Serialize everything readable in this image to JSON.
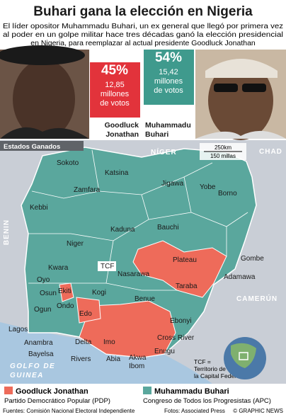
{
  "header": {
    "title": "Buhari gana la elección en Nigeria",
    "subtitle": [
      "El líder opositor Muhammadu Buhari, un ex general que llegó por primera vez",
      "al poder en un golpe militar hace tres décadas ganó la elección presidencial",
      "en Nigeria, para reemplazar al actual presidente Goodluck Jonathan"
    ]
  },
  "candidates": [
    {
      "name": [
        "Goodluck",
        "Jonathan"
      ],
      "percent": "45%",
      "votes": [
        "12,85",
        "millones",
        "de votos"
      ]
    },
    {
      "name": [
        "Muhammadu",
        "Buhari"
      ],
      "percent": "54%",
      "votes": [
        "15,42",
        "millones",
        "de votos"
      ]
    }
  ],
  "map": {
    "section_label": "Estados Ganados",
    "scale": [
      "250km",
      "150 millas"
    ],
    "countries": [
      "NÍGER",
      "CHAD",
      "BENIN",
      "CAMERÚN"
    ],
    "sea": [
      "GOLFO DE",
      "GUINEA"
    ],
    "states": [
      "Katsina",
      "Sokoto",
      "Jigawa",
      "Yobe",
      "Zamfara",
      "Borno",
      "Kebbi",
      "Kaduna",
      "Bauchi",
      "Niger",
      "Plateau",
      "Gombe",
      "Kwara",
      "TCF",
      "Nasarawa",
      "Adamawa",
      "Oyo",
      "Taraba",
      "Osun",
      "Ekiti",
      "Kogi",
      "Benue",
      "Ondo",
      "Ogun",
      "Edo",
      "Ebonyi",
      "Lagos",
      "Anambra",
      "Delta",
      "Imo",
      "Cross River",
      "Enugu",
      "Bayelsa",
      "Abia",
      "Rivers",
      "Akwa",
      "Ibom"
    ],
    "note": [
      "TCF =",
      "Territorio de",
      "la Capital Federal"
    ]
  },
  "legend": [
    {
      "name": "Goodluck Jonathan",
      "party": "Partido Democrático Popular (PDP)"
    },
    {
      "name": "Muhammadu Buhari",
      "party": "Congreso de Todos los Progresistas (APC)"
    }
  ],
  "footer": {
    "sources": "Fuentes: Comisión Nacional Electoral Independiente",
    "photos": "Fotos: Associated Press",
    "credit": "© GRAPHIC NEWS"
  }
}
